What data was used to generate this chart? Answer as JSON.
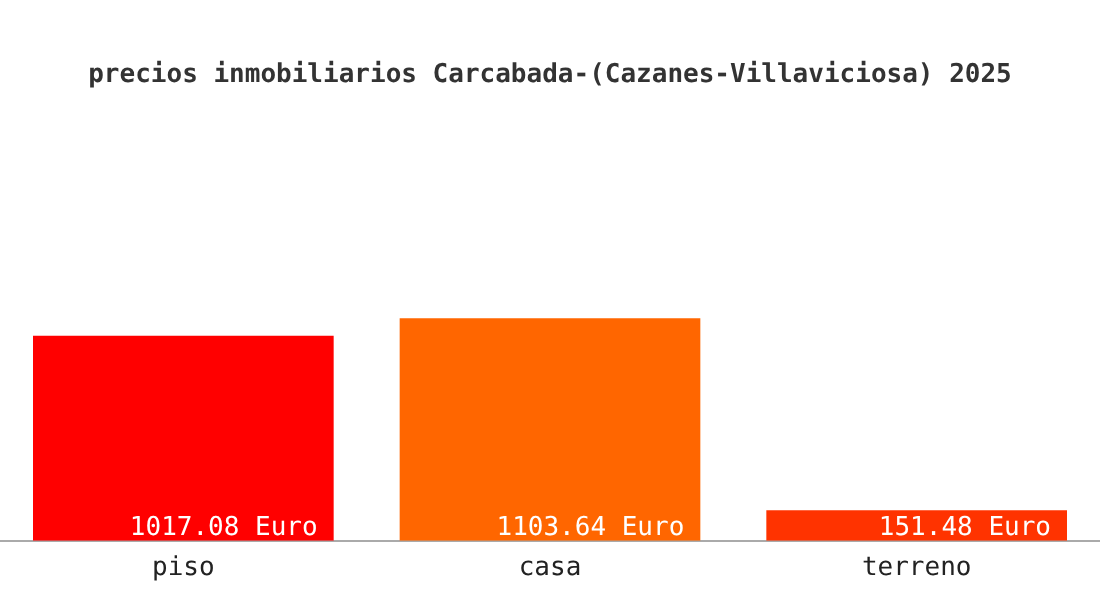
{
  "chart_data": {
    "type": "bar",
    "title": "precios inmobiliarios Carcabada-(Cazanes-Villaviciosa) 2025",
    "categories": [
      "piso",
      "casa",
      "terreno"
    ],
    "values": [
      1017.08,
      1103.64,
      151.48
    ],
    "colors": [
      "#ff0000",
      "#ff6600",
      "#ff3300"
    ],
    "value_labels": [
      "1017.08 Euro",
      "1103.64 Euro",
      "151.48 Euro"
    ],
    "legend": false,
    "grid": false
  }
}
